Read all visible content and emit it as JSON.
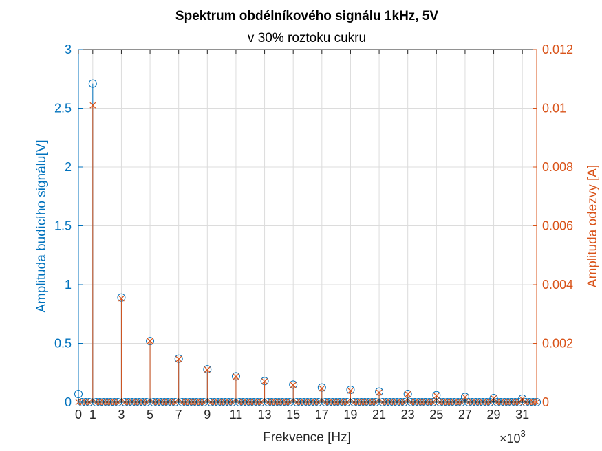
{
  "chart_data": {
    "type": "stem",
    "title": "Spektrum obdélníkového signálu 1kHz, 5V",
    "subtitle": "v 30% roztoku cukru",
    "xlabel": "Frekvence [Hz]",
    "x_exponent_base": "×10",
    "x_exponent_power": "3",
    "ylabel_left": "Amplituda budícího signálu[V]",
    "ylabel_right": "Amplituda odezvy [A]",
    "x_unit_scale": 1000,
    "xlim": [
      0,
      32000
    ],
    "ylim_left": [
      0,
      3
    ],
    "ylim_right": [
      0,
      0.012
    ],
    "x_ticks": [
      0,
      1000,
      3000,
      5000,
      7000,
      9000,
      11000,
      13000,
      15000,
      17000,
      19000,
      21000,
      23000,
      25000,
      27000,
      29000,
      31000
    ],
    "x_tick_labels": [
      "0",
      "1",
      "3",
      "5",
      "7",
      "9",
      "11",
      "13",
      "15",
      "17",
      "19",
      "21",
      "23",
      "25",
      "27",
      "29",
      "31"
    ],
    "y_left_ticks": [
      0,
      0.5,
      1,
      1.5,
      2,
      2.5,
      3
    ],
    "y_left_tick_labels": [
      "0",
      "0.5",
      "1",
      "1.5",
      "2",
      "2.5",
      "3"
    ],
    "y_right_ticks": [
      0,
      0.002,
      0.004,
      0.006,
      0.008,
      0.01,
      0.012
    ],
    "y_right_tick_labels": [
      "0",
      "0.002",
      "0.004",
      "0.006",
      "0.008",
      "0.01",
      "0.012"
    ],
    "grid": true,
    "colors": {
      "left": "#0072BD",
      "right": "#D95319",
      "grid": "#dcdcdc"
    },
    "series": [
      {
        "axis": "left",
        "marker": "circle",
        "x": [
          0,
          1000,
          3000,
          5000,
          7000,
          9000,
          11000,
          13000,
          15000,
          17000,
          19000,
          21000,
          23000,
          25000,
          27000,
          29000,
          31000
        ],
        "values": [
          0.07,
          2.71,
          0.89,
          0.52,
          0.37,
          0.28,
          0.22,
          0.18,
          0.15,
          0.125,
          0.105,
          0.09,
          0.07,
          0.06,
          0.045,
          0.035,
          0.03
        ]
      },
      {
        "axis": "right",
        "marker": "x",
        "x": [
          0,
          1000,
          3000,
          5000,
          7000,
          9000,
          11000,
          13000,
          15000,
          17000,
          19000,
          21000,
          23000,
          25000,
          27000,
          29000,
          31000
        ],
        "values": [
          0.0,
          0.0101,
          0.00353,
          0.00208,
          0.00147,
          0.00111,
          0.00087,
          0.00071,
          0.00058,
          0.00047,
          0.00039,
          0.00033,
          0.00027,
          0.00022,
          0.00017,
          0.00013,
          0.0001
        ]
      }
    ],
    "zero_series_step": 250
  }
}
